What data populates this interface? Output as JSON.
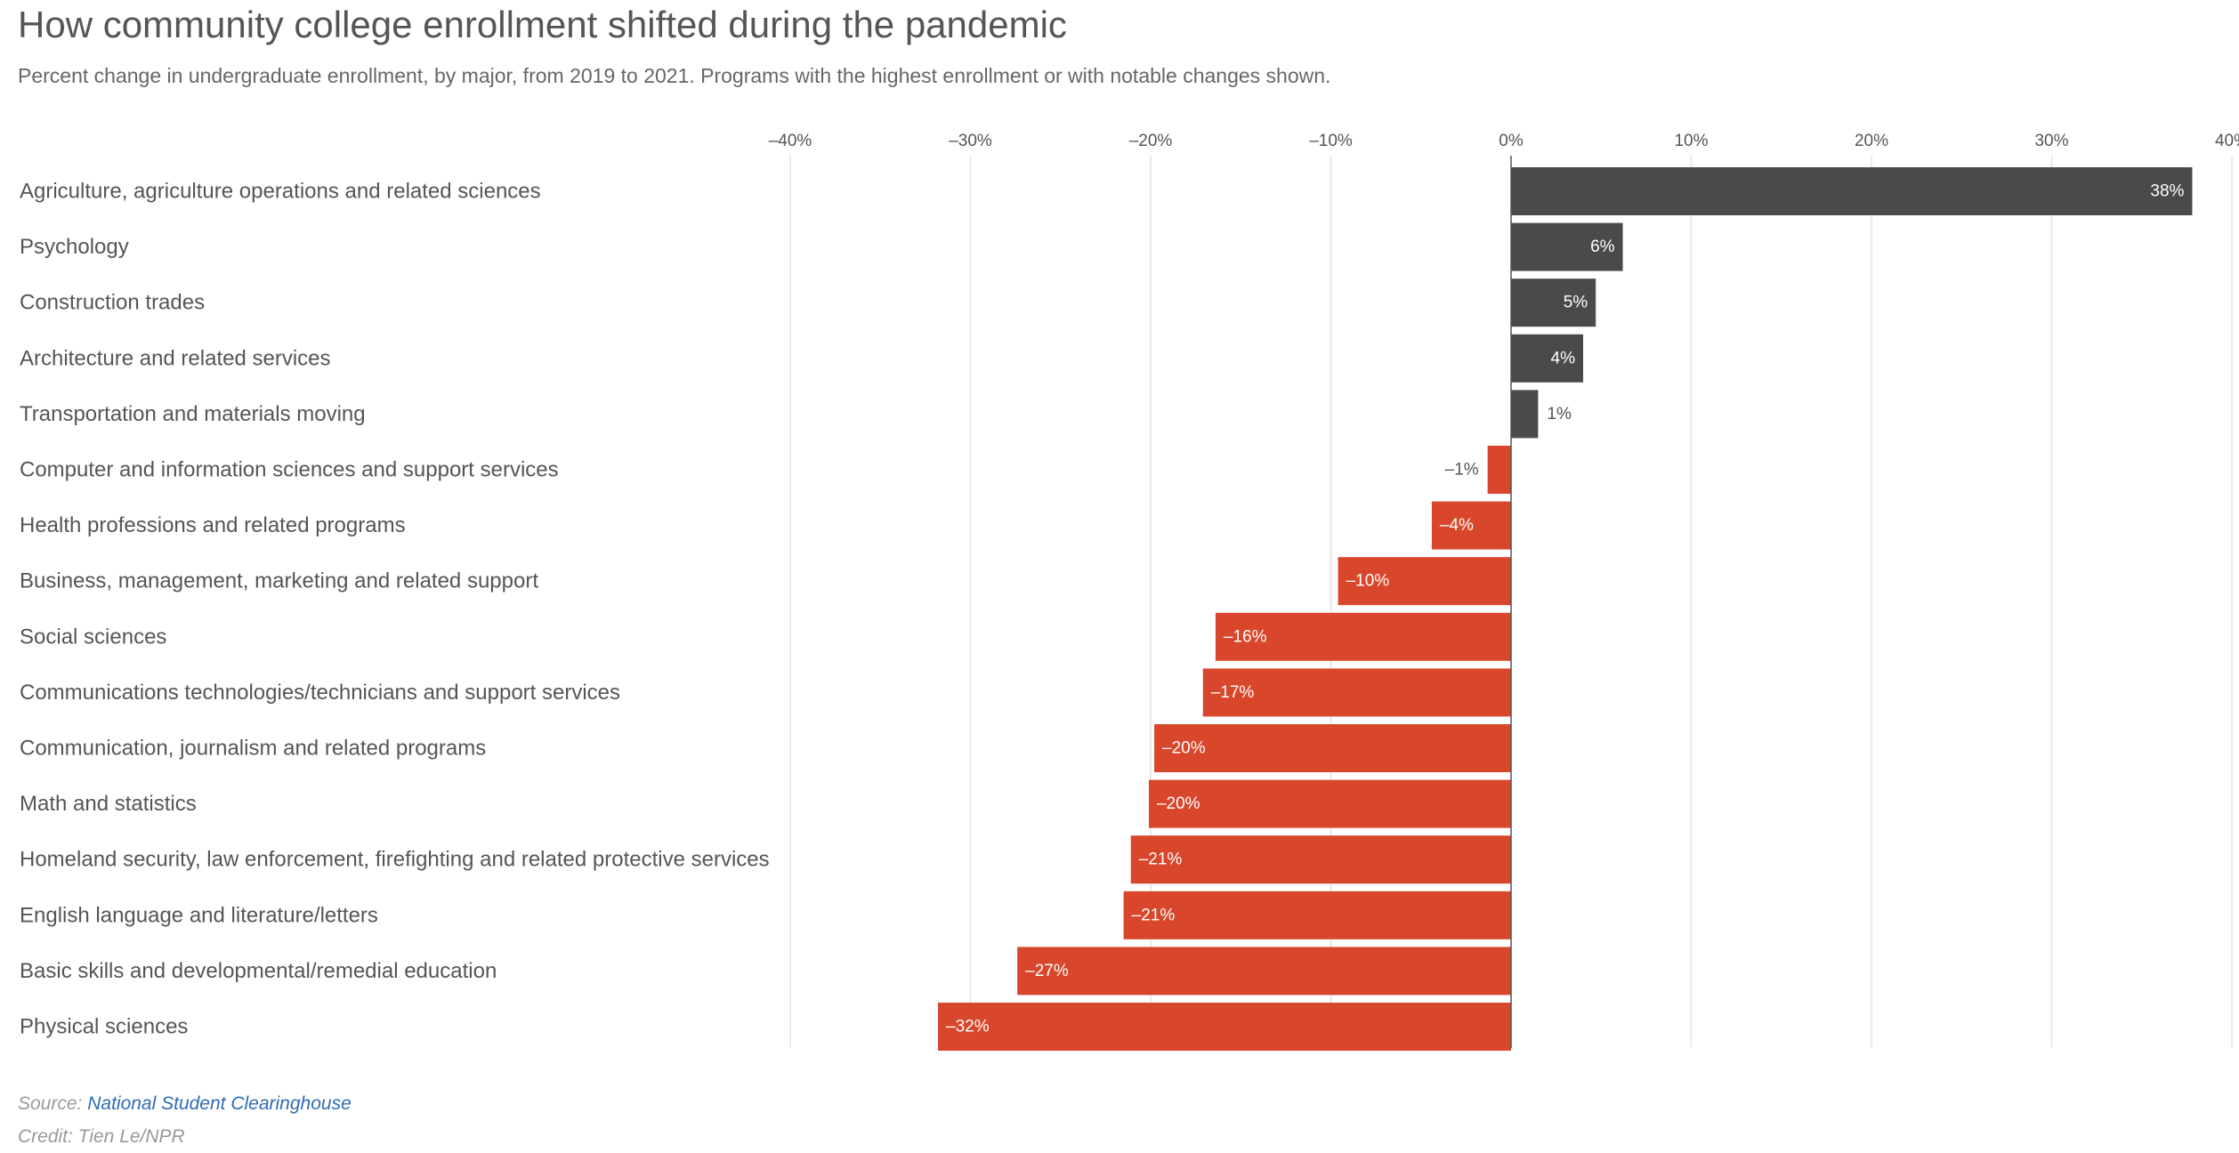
{
  "title": "How community college enrollment shifted during the pandemic",
  "subtitle": "Percent change in undergraduate enrollment, by major, from 2019 to 2021. Programs with the highest enrollment or with notable changes shown.",
  "footer": {
    "source_prefix": "Source: ",
    "source_link": "National Student Clearinghouse",
    "credit": "Credit: Tien Le/NPR"
  },
  "colors": {
    "positive": "#4a4a4a",
    "negative": "#d8472b",
    "label_inside": "#ffffff",
    "label_outside": "#555555"
  },
  "chart_data": {
    "type": "bar",
    "orientation": "horizontal",
    "title": "How community college enrollment shifted during the pandemic",
    "subtitle": "Percent change in undergraduate enrollment, by major, from 2019 to 2021. Programs with the highest enrollment or with notable changes shown.",
    "xlim": [
      -40,
      40
    ],
    "xticks": [
      -40,
      -30,
      -20,
      -10,
      0,
      10,
      20,
      30,
      40
    ],
    "xtick_labels": [
      "–40%",
      "–30%",
      "–20%",
      "–10%",
      "0%",
      "10%",
      "20%",
      "30%",
      "40%"
    ],
    "xaxis_position": "top",
    "grid": true,
    "categories": [
      "Agriculture, agriculture operations and related sciences",
      "Psychology",
      "Construction trades",
      "Architecture and related services",
      "Transportation and materials moving",
      "Computer and information sciences and support services",
      "Health professions and related programs",
      "Business, management, marketing and related support",
      "Social sciences",
      "Communications technologies/technicians and support services",
      "Communication, journalism and related programs",
      "Math and statistics",
      "Homeland security, law enforcement, firefighting and related protective services",
      "English language and literature/letters",
      "Basic skills and developmental/remedial education",
      "Physical sciences"
    ],
    "values": [
      37.8,
      6.2,
      4.7,
      4.0,
      1.5,
      -1.3,
      -4.4,
      -9.6,
      -16.4,
      -17.1,
      -19.8,
      -20.1,
      -21.1,
      -21.5,
      -27.4,
      -31.8
    ],
    "data_labels": [
      "38%",
      "6%",
      "5%",
      "4%",
      "1%",
      "–1%",
      "–4%",
      "–10%",
      "–16%",
      "–17%",
      "–20%",
      "–20%",
      "–21%",
      "–21%",
      "–27%",
      "–32%"
    ]
  }
}
